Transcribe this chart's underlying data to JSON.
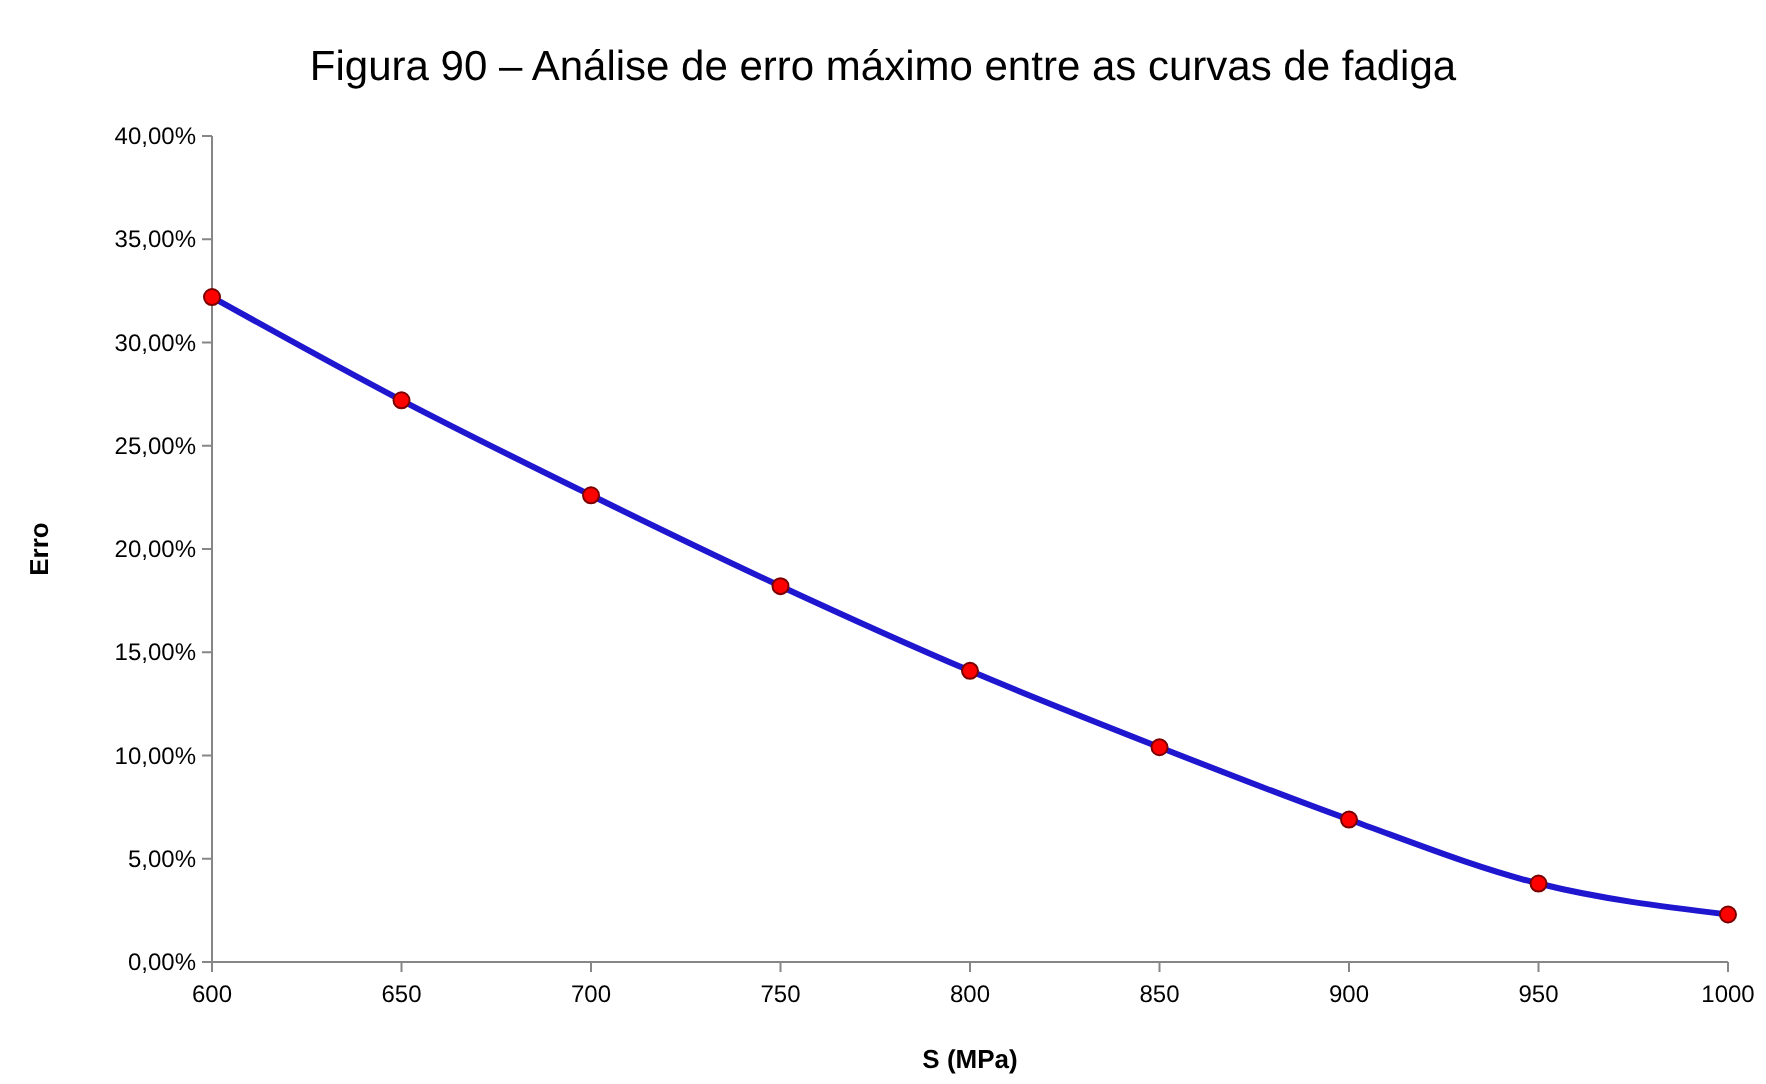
{
  "chart_data": {
    "type": "line",
    "title": "Figura 90 – Análise de erro máximo entre as curvas de fadiga",
    "xlabel": "S (MPa)",
    "ylabel": "Erro",
    "x": [
      600,
      650,
      700,
      750,
      800,
      850,
      900,
      950,
      1000
    ],
    "series": [
      {
        "color": "#1f17d0",
        "values": [
          32.2,
          27.2,
          22.6,
          18.2,
          14.1,
          10.4,
          6.9,
          3.8,
          2.3
        ]
      }
    ],
    "xlim": [
      600,
      1000
    ],
    "xticks": [
      600,
      650,
      700,
      750,
      800,
      850,
      900,
      950,
      1000
    ],
    "ylim": [
      0,
      40
    ],
    "yticks": [
      {
        "value": 0,
        "label": "0,00%"
      },
      {
        "value": 5,
        "label": "5,00%"
      },
      {
        "value": 10,
        "label": "10,00%"
      },
      {
        "value": 15,
        "label": "15,00%"
      },
      {
        "value": 20,
        "label": "20,00%"
      },
      {
        "value": 25,
        "label": "25,00%"
      },
      {
        "value": 30,
        "label": "30,00%"
      },
      {
        "value": 35,
        "label": "35,00%"
      },
      {
        "value": 40,
        "label": "40,00%"
      }
    ],
    "grid": false,
    "marker": "circle",
    "line_style": "solid"
  }
}
